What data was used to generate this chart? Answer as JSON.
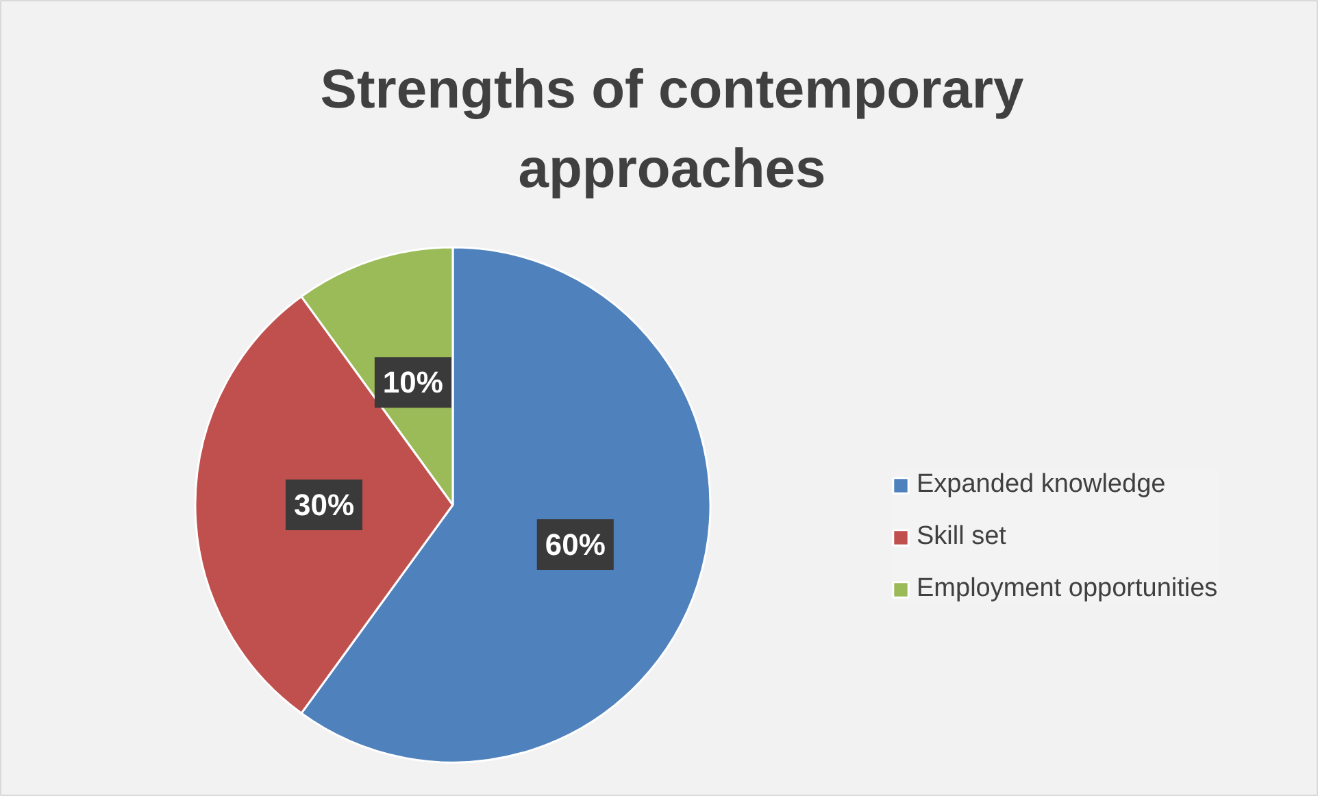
{
  "chart_data": {
    "type": "pie",
    "title": "Strengths of contemporary approaches",
    "categories": [
      "Expanded knowledge",
      "Skill set",
      "Employment opportunities"
    ],
    "values": [
      60,
      30,
      10
    ],
    "colors": [
      "#4f81bd",
      "#c0504d",
      "#9bbb59"
    ],
    "value_labels": [
      "60%",
      "30%",
      "10%"
    ],
    "legend": "right"
  }
}
